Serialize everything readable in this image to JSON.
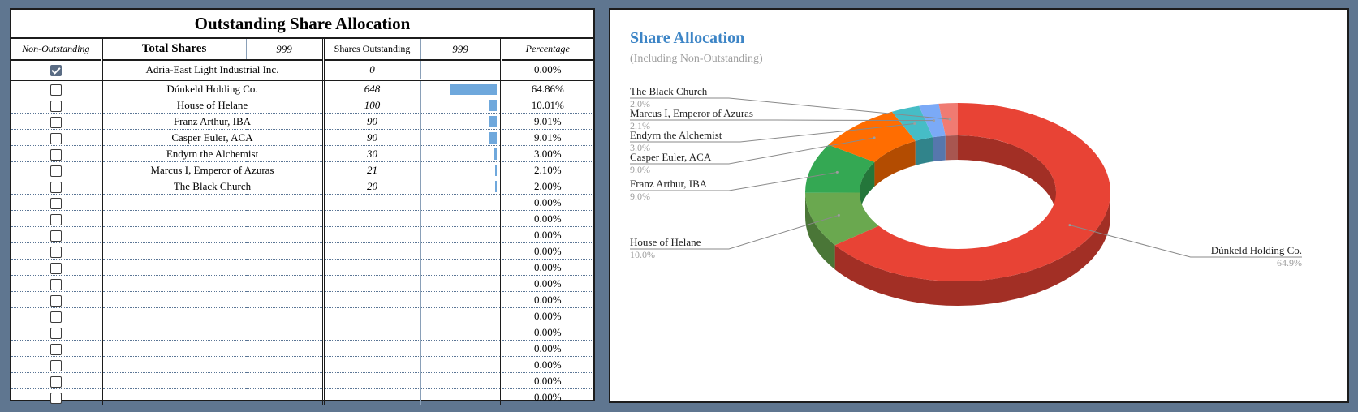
{
  "table": {
    "title": "Outstanding Share Allocation",
    "headers": {
      "non_outstanding": "Non-Outstanding",
      "total_shares_label": "Total Shares",
      "total_shares_value": "999",
      "shares_outstanding_label": "Shares Outstanding",
      "shares_outstanding_value": "999",
      "percentage": "Percentage"
    },
    "rows": [
      {
        "checked": true,
        "name": "Adria-East Light Industrial Inc.",
        "shares": "0",
        "fraction": 0,
        "pct": "0.00%"
      },
      {
        "checked": false,
        "name": "Dúnkeld Holding Co.",
        "shares": "648",
        "fraction": 0.6486,
        "pct": "64.86%"
      },
      {
        "checked": false,
        "name": "House of Helane",
        "shares": "100",
        "fraction": 0.1001,
        "pct": "10.01%"
      },
      {
        "checked": false,
        "name": "Franz Arthur, IBA",
        "shares": "90",
        "fraction": 0.0901,
        "pct": "9.01%"
      },
      {
        "checked": false,
        "name": "Casper Euler, ACA",
        "shares": "90",
        "fraction": 0.0901,
        "pct": "9.01%"
      },
      {
        "checked": false,
        "name": "Endyrn the Alchemist",
        "shares": "30",
        "fraction": 0.03,
        "pct": "3.00%"
      },
      {
        "checked": false,
        "name": "Marcus I, Emperor of Azuras",
        "shares": "21",
        "fraction": 0.021,
        "pct": "2.10%"
      },
      {
        "checked": false,
        "name": "The Black Church",
        "shares": "20",
        "fraction": 0.02,
        "pct": "2.00%"
      },
      {
        "checked": false,
        "name": "",
        "shares": "",
        "fraction": 0,
        "pct": "0.00%"
      },
      {
        "checked": false,
        "name": "",
        "shares": "",
        "fraction": 0,
        "pct": "0.00%"
      },
      {
        "checked": false,
        "name": "",
        "shares": "",
        "fraction": 0,
        "pct": "0.00%"
      },
      {
        "checked": false,
        "name": "",
        "shares": "",
        "fraction": 0,
        "pct": "0.00%"
      },
      {
        "checked": false,
        "name": "",
        "shares": "",
        "fraction": 0,
        "pct": "0.00%"
      },
      {
        "checked": false,
        "name": "",
        "shares": "",
        "fraction": 0,
        "pct": "0.00%"
      },
      {
        "checked": false,
        "name": "",
        "shares": "",
        "fraction": 0,
        "pct": "0.00%"
      },
      {
        "checked": false,
        "name": "",
        "shares": "",
        "fraction": 0,
        "pct": "0.00%"
      },
      {
        "checked": false,
        "name": "",
        "shares": "",
        "fraction": 0,
        "pct": "0.00%"
      },
      {
        "checked": false,
        "name": "",
        "shares": "",
        "fraction": 0,
        "pct": "0.00%"
      },
      {
        "checked": false,
        "name": "",
        "shares": "",
        "fraction": 0,
        "pct": "0.00%"
      },
      {
        "checked": false,
        "name": "",
        "shares": "",
        "fraction": 0,
        "pct": "0.00%"
      },
      {
        "checked": false,
        "name": "",
        "shares": "",
        "fraction": 0,
        "pct": "0.00%"
      }
    ],
    "bar_color": "#6fa8dc"
  },
  "chart_data": {
    "type": "pie",
    "title": "Share Allocation",
    "subtitle": "(Including Non-Outstanding)",
    "style": "3d-donut",
    "slices": [
      {
        "label": "Dúnkeld Holding Co.",
        "value": 64.9,
        "pct_label": "64.9%",
        "color": "#e84335"
      },
      {
        "label": "House of Helane",
        "value": 10.0,
        "pct_label": "10.0%",
        "color": "#6aa84f"
      },
      {
        "label": "Franz Arthur, IBA",
        "value": 9.0,
        "pct_label": "9.0%",
        "color": "#34a853"
      },
      {
        "label": "Casper Euler, ACA",
        "value": 9.0,
        "pct_label": "9.0%",
        "color": "#ff6d01"
      },
      {
        "label": "Endyrn the Alchemist",
        "value": 3.0,
        "pct_label": "3.0%",
        "color": "#46bdc6"
      },
      {
        "label": "Marcus I, Emperor of Azuras",
        "value": 2.1,
        "pct_label": "2.1%",
        "color": "#7baaf7"
      },
      {
        "label": "The Black Church",
        "value": 2.0,
        "pct_label": "2.0%",
        "color": "#f07b72"
      }
    ],
    "legend": "labels-with-leader-lines"
  }
}
